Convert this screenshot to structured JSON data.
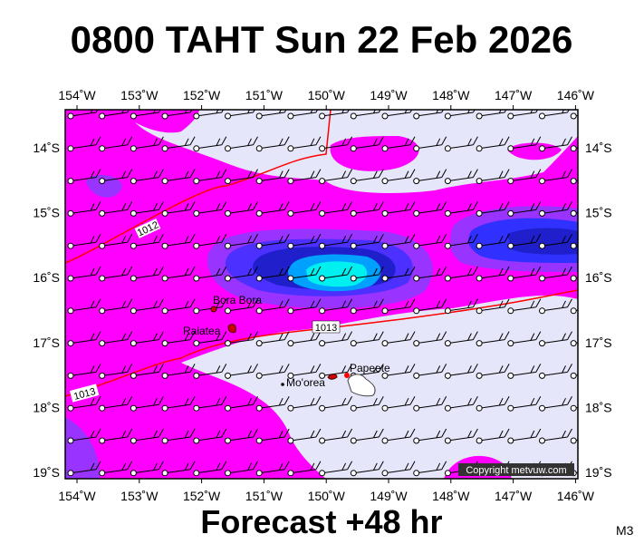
{
  "title": "0800 TAHT Sun 22 Feb 2026",
  "lon_labels": [
    "154˚W",
    "153˚W",
    "152˚W",
    "151˚W",
    "150˚W",
    "149˚W",
    "148˚W",
    "147˚W",
    "146˚W"
  ],
  "lat_labels": [
    "14˚S",
    "15˚S",
    "16˚S",
    "17˚S",
    "18˚S",
    "19˚S"
  ],
  "places": [
    "Bora Bora",
    "Raiatea",
    "Mo'orea",
    "Papeete"
  ],
  "isobar_labels": [
    "1012",
    "1013",
    "1013"
  ],
  "copyright": "Copyright metvuw.com",
  "footer": "Forecast +48 hr",
  "model": "M3"
}
